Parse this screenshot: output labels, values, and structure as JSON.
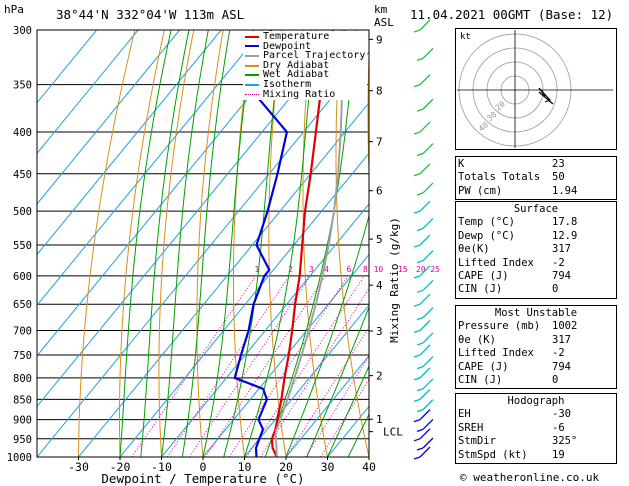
{
  "header": {
    "location": "38°44'N  332°04'W  113m  ASL",
    "datetime": "11.04.2021  00GMT  (Base: 12)",
    "hpa_label": "hPa",
    "km_label": "km",
    "asl_label": "ASL"
  },
  "chart_data": {
    "type": "skew-t",
    "xlabel": "Dewpoint / Temperature (°C)",
    "right_axis_label": "Mixing Ratio (g/kg)",
    "x_ticks": [
      -30,
      -20,
      -10,
      0,
      10,
      20,
      30,
      40
    ],
    "pressure_levels": [
      300,
      350,
      400,
      450,
      500,
      550,
      600,
      650,
      700,
      750,
      800,
      850,
      900,
      950,
      1000
    ],
    "km_ticks": [
      {
        "label": "9",
        "p": 308
      },
      {
        "label": "8",
        "p": 356
      },
      {
        "label": "7",
        "p": 411
      },
      {
        "label": "6",
        "p": 472
      },
      {
        "label": "5",
        "p": 541
      },
      {
        "label": "4",
        "p": 616
      },
      {
        "label": "3",
        "p": 701
      },
      {
        "label": "2",
        "p": 795
      },
      {
        "label": "1",
        "p": 899
      },
      {
        "label": "LCL",
        "p": 931
      }
    ],
    "mixing_ratio_labels": [
      "1",
      "2",
      "3",
      "4",
      "6",
      "8",
      "10",
      "15",
      "20",
      "25"
    ],
    "mixing_ratio_values": [
      1,
      2,
      3,
      4,
      6,
      8,
      10,
      15,
      20,
      25
    ],
    "legend": [
      "Temperature",
      "Dewpoint",
      "Parcel Trajectory",
      "Dry Adiabat",
      "Wet Adiabat",
      "Isotherm",
      "Mixing Ratio"
    ],
    "legend_placement": "top-left",
    "series": [
      {
        "name": "Temperature",
        "color": "#e00000",
        "points": [
          [
            1000,
            17.8
          ],
          [
            975,
            15
          ],
          [
            950,
            13
          ],
          [
            925,
            12
          ],
          [
            900,
            10.5
          ],
          [
            850,
            7.5
          ],
          [
            800,
            4
          ],
          [
            750,
            0.5
          ],
          [
            700,
            -3.5
          ],
          [
            650,
            -8
          ],
          [
            600,
            -12.5
          ],
          [
            550,
            -18
          ],
          [
            500,
            -24
          ],
          [
            450,
            -30
          ],
          [
            400,
            -37
          ],
          [
            350,
            -45
          ],
          [
            300,
            -53
          ]
        ]
      },
      {
        "name": "Dewpoint",
        "color": "#0000e0",
        "points": [
          [
            1000,
            12.9
          ],
          [
            975,
            11
          ],
          [
            950,
            10
          ],
          [
            925,
            9
          ],
          [
            900,
            6
          ],
          [
            850,
            4
          ],
          [
            825,
            1
          ],
          [
            800,
            -8
          ],
          [
            750,
            -11
          ],
          [
            700,
            -14
          ],
          [
            650,
            -18
          ],
          [
            600,
            -21
          ],
          [
            590,
            -21
          ],
          [
            550,
            -29
          ],
          [
            500,
            -33
          ],
          [
            450,
            -38
          ],
          [
            400,
            -44
          ],
          [
            350,
            -63
          ],
          [
            300,
            -68
          ]
        ]
      },
      {
        "name": "Parcel Trajectory",
        "color": "#a0a0a0",
        "points": [
          [
            1000,
            17.8
          ],
          [
            931,
            12.5
          ],
          [
            900,
            11.2
          ],
          [
            850,
            9
          ],
          [
            800,
            6.4
          ],
          [
            750,
            3.6
          ],
          [
            700,
            0.5
          ],
          [
            650,
            -3
          ],
          [
            600,
            -7
          ],
          [
            550,
            -11.6
          ],
          [
            500,
            -17
          ],
          [
            450,
            -23.4
          ],
          [
            400,
            -31
          ],
          [
            350,
            -40
          ],
          [
            300,
            -50.5
          ]
        ]
      }
    ],
    "hodograph": {
      "label": "kt",
      "ring_labels": [
        "10",
        "20",
        "30",
        "40"
      ]
    }
  },
  "indices": {
    "k": {
      "label": "K",
      "value": "23"
    },
    "tt": {
      "label": "Totals Totals",
      "value": "50"
    },
    "pw": {
      "label": "PW (cm)",
      "value": "1.94"
    }
  },
  "surface": {
    "title": "Surface",
    "rows": [
      {
        "label": "Temp (°C)",
        "value": "17.8"
      },
      {
        "label": "Dewp (°C)",
        "value": "12.9"
      },
      {
        "label": "θe(K)",
        "value": "317"
      },
      {
        "label": "Lifted Index",
        "value": "-2"
      },
      {
        "label": "CAPE (J)",
        "value": "794"
      },
      {
        "label": "CIN (J)",
        "value": "0"
      }
    ]
  },
  "most_unstable": {
    "title": "Most Unstable",
    "rows": [
      {
        "label": "Pressure (mb)",
        "value": "1002"
      },
      {
        "label": "θe (K)",
        "value": "317"
      },
      {
        "label": "Lifted Index",
        "value": "-2"
      },
      {
        "label": "CAPE (J)",
        "value": "794"
      },
      {
        "label": "CIN (J)",
        "value": "0"
      }
    ]
  },
  "hodograph_table": {
    "title": "Hodograph",
    "rows": [
      {
        "label": "EH",
        "value": "-30"
      },
      {
        "label": "SREH",
        "value": "-6"
      },
      {
        "label": "StmDir",
        "value": "325°"
      },
      {
        "label": "StmSpd (kt)",
        "value": "19"
      }
    ]
  },
  "footer": {
    "copyright": "© weatheronline.co.uk"
  },
  "colors": {
    "temperature": "#e00000",
    "dewpoint": "#0000e0",
    "parcel": "#a0a0a0",
    "dry_adiabat": "#d89018",
    "wet_adiabat": "#00a000",
    "isotherm": "#20a0e0",
    "mixing_ratio": "#e000a0",
    "wind_barb": "#00c0c0"
  }
}
